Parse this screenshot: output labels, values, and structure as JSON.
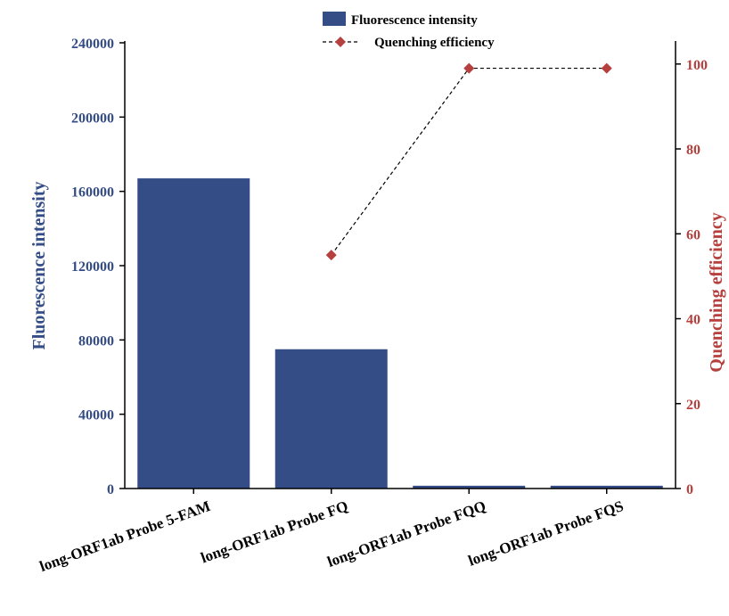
{
  "chart_data": {
    "type": "bar",
    "categories": [
      "long-ORF1ab Probe 5-FAM",
      "long-ORF1ab Probe FQ",
      "long-ORF1ab Probe FQQ",
      "long-ORF1ab Probe FQS"
    ],
    "series": [
      {
        "name": "Fluorescence intensity",
        "type": "bar",
        "axis": "left",
        "values": [
          167000,
          75000,
          1500,
          1500
        ],
        "color": "#344d87"
      },
      {
        "name": "Quenching efficiency",
        "type": "line",
        "axis": "right",
        "values": [
          null,
          55,
          99,
          99
        ],
        "color": "#b5403d",
        "line_color": "#000000",
        "line_style": "dashed",
        "marker": "diamond"
      }
    ],
    "ylabel": "Fluorescence intensity",
    "ylabel_right": "Quenching efficiency",
    "ylim": [
      0,
      240000
    ],
    "ylim_right": [
      0,
      105
    ],
    "yticks": [
      0,
      40000,
      80000,
      120000,
      160000,
      200000,
      240000
    ],
    "yticks_right": [
      0,
      20,
      40,
      60,
      80,
      100
    ],
    "left_axis_color": "#344d87",
    "right_axis_color": "#b5403d",
    "grid": false,
    "legend": "top-center"
  }
}
